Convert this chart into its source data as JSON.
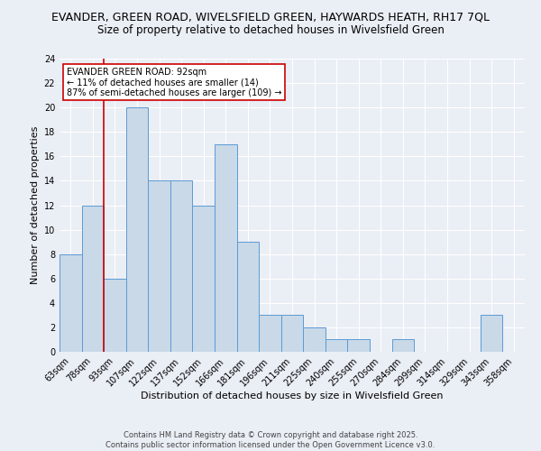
{
  "title1": "EVANDER, GREEN ROAD, WIVELSFIELD GREEN, HAYWARDS HEATH, RH17 7QL",
  "title2": "Size of property relative to detached houses in Wivelsfield Green",
  "xlabel": "Distribution of detached houses by size in Wivelsfield Green",
  "ylabel": "Number of detached properties",
  "bin_labels": [
    "63sqm",
    "78sqm",
    "93sqm",
    "107sqm",
    "122sqm",
    "137sqm",
    "152sqm",
    "166sqm",
    "181sqm",
    "196sqm",
    "211sqm",
    "225sqm",
    "240sqm",
    "255sqm",
    "270sqm",
    "284sqm",
    "299sqm",
    "314sqm",
    "329sqm",
    "343sqm",
    "358sqm"
  ],
  "bar_values": [
    8,
    12,
    6,
    20,
    14,
    14,
    12,
    17,
    9,
    3,
    3,
    2,
    1,
    1,
    0,
    1,
    0,
    0,
    0,
    3,
    0
  ],
  "bar_color": "#c9d9e8",
  "bar_edge_color": "#5b9bd5",
  "vline_x_index": 2,
  "annotation_text_lines": [
    "EVANDER GREEN ROAD: 92sqm",
    "← 11% of detached houses are smaller (14)",
    "87% of semi-detached houses are larger (109) →"
  ],
  "annotation_box_color": "#ffffff",
  "annotation_box_edge_color": "#cc0000",
  "vline_color": "#cc0000",
  "ylim": [
    0,
    24
  ],
  "yticks": [
    0,
    2,
    4,
    6,
    8,
    10,
    12,
    14,
    16,
    18,
    20,
    22,
    24
  ],
  "footer_text": "Contains HM Land Registry data © Crown copyright and database right 2025.\nContains public sector information licensed under the Open Government Licence v3.0.",
  "background_color": "#eaeef5",
  "plot_background_color": "#eaeef5",
  "grid_color": "#ffffff",
  "title_fontsize": 9,
  "subtitle_fontsize": 8.5,
  "axis_label_fontsize": 8,
  "tick_fontsize": 7,
  "annotation_fontsize": 7,
  "footer_fontsize": 6
}
